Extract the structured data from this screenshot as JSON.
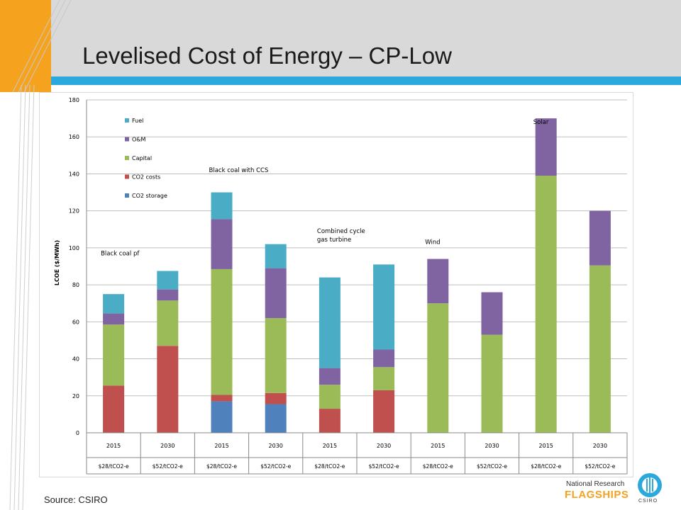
{
  "slide": {
    "title": "Levelised Cost of Energy – CP-Low",
    "source": "Source: CSIRO",
    "brand_line1": "National Research",
    "brand_line2": "FLAGSHIPS",
    "brand_logo_text": "CSIRO",
    "accent_orange": "#f5a21e",
    "accent_blue": "#2ba9dc"
  },
  "chart_data": {
    "type": "bar",
    "stacked": true,
    "title": "",
    "xlabel": "",
    "ylabel": "LCOE ($/MWh)",
    "ylim": [
      0,
      180
    ],
    "yticks": [
      0,
      20,
      40,
      60,
      80,
      100,
      120,
      140,
      160,
      180
    ],
    "grid": true,
    "legend_position": "top-left",
    "categories": [
      {
        "year": "2015",
        "price": "$28/tCO2-e"
      },
      {
        "year": "2030",
        "price": "$52/tCO2-e"
      },
      {
        "year": "2015",
        "price": "$28/tCO2-e"
      },
      {
        "year": "2030",
        "price": "$52/tCO2-e"
      },
      {
        "year": "2015",
        "price": "$28/tCO2-e"
      },
      {
        "year": "2030",
        "price": "$52/tCO2-e"
      },
      {
        "year": "2015",
        "price": "$28/tCO2-e"
      },
      {
        "year": "2030",
        "price": "$52/tCO2-e"
      },
      {
        "year": "2015",
        "price": "$28/tCO2-e"
      },
      {
        "year": "2030",
        "price": "$52/tCO2-e"
      }
    ],
    "series": [
      {
        "name": "CO2 storage",
        "color": "#4f81bd",
        "values": [
          0,
          0,
          17,
          15.5,
          0,
          0,
          0,
          0,
          0,
          0
        ]
      },
      {
        "name": "CO2 costs",
        "color": "#c0504d",
        "values": [
          25.5,
          47,
          3.5,
          6,
          13,
          23,
          0,
          0,
          0,
          0
        ]
      },
      {
        "name": "Capital",
        "color": "#9bbb59",
        "values": [
          33,
          24.5,
          68,
          40.5,
          13,
          12.5,
          70,
          53,
          139,
          90.5
        ]
      },
      {
        "name": "O&M",
        "color": "#8064a2",
        "values": [
          6,
          6,
          27,
          27,
          9,
          9.5,
          24,
          23,
          31,
          29.5
        ]
      },
      {
        "name": "Fuel",
        "color": "#4bacc6",
        "values": [
          10.5,
          10,
          14.5,
          13,
          49,
          46,
          0,
          0,
          0,
          0
        ]
      }
    ],
    "legend_order": [
      "Fuel",
      "O&M",
      "Capital",
      "CO2 costs",
      "CO2 storage"
    ],
    "annotations": [
      {
        "text": "Black coal pf",
        "lines": [
          "Black coal pf"
        ],
        "near_category": 0,
        "y": 96
      },
      {
        "text": "Black coal with CCS",
        "lines": [
          "Black coal with CCS"
        ],
        "near_category": 2,
        "y": 141
      },
      {
        "text": "Combined cycle gas turbine",
        "lines": [
          "Combined cycle",
          "gas turbine"
        ],
        "near_category": 4,
        "y": 108
      },
      {
        "text": "Wind",
        "lines": [
          "Wind"
        ],
        "near_category": 6,
        "y": 102
      },
      {
        "text": "Solar",
        "lines": [
          "Solar"
        ],
        "near_category": 8,
        "y": 167
      }
    ]
  }
}
